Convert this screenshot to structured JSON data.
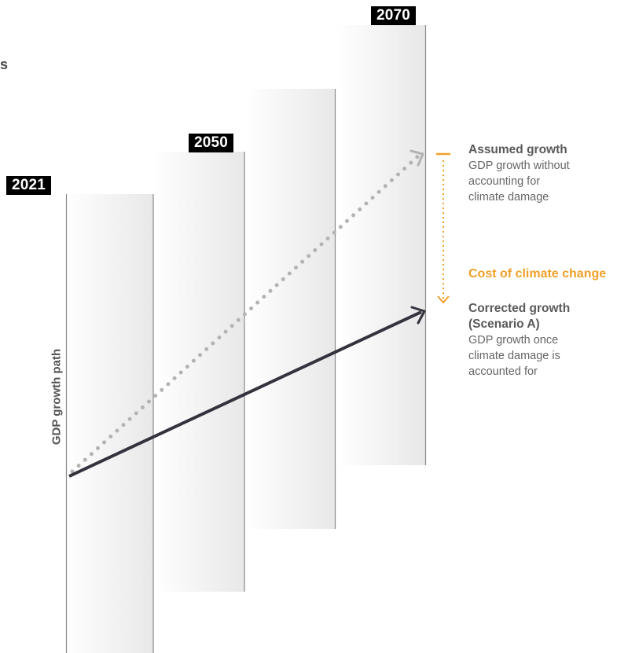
{
  "cut_text": "s",
  "years": {
    "y2021": "2021",
    "y2050": "2050",
    "y2070": "2070"
  },
  "axis_label": "GDP growth path",
  "assumed": {
    "title": "Assumed growth",
    "lines": [
      "GDP growth without",
      "accounting for",
      "climate damage"
    ]
  },
  "cost_label": "Cost of climate change",
  "corrected": {
    "title_lines": [
      "Corrected growth",
      "(Scenario A)"
    ],
    "lines": [
      "GDP growth once",
      "climate damage is",
      "accounted for"
    ]
  },
  "colors": {
    "accent_orange": "#f0a029",
    "dotted_line": "#b3b3b3",
    "solid_line": "#33333d",
    "tag_bg": "#000000"
  }
}
